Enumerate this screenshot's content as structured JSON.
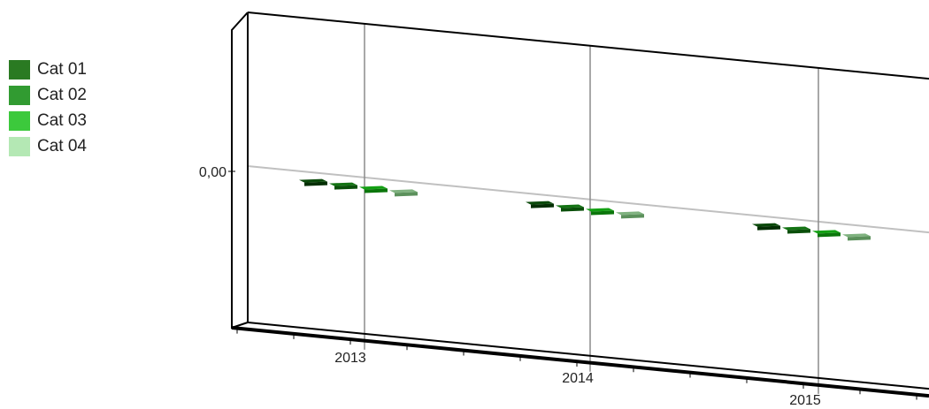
{
  "chart_data": {
    "type": "bar",
    "categories": [
      "2013",
      "2014",
      "2015"
    ],
    "series": [
      {
        "name": "Cat 01",
        "values": [
          0,
          0,
          0
        ]
      },
      {
        "name": "Cat 02",
        "values": [
          0,
          0,
          0
        ]
      },
      {
        "name": "Cat 03",
        "values": [
          0,
          0,
          0
        ]
      },
      {
        "name": "Cat 04",
        "values": [
          0,
          0,
          0
        ]
      }
    ],
    "y_tick_labels": [
      "0,00"
    ],
    "title": "",
    "xlabel": "",
    "ylabel": "",
    "legend_position": "left",
    "grid": true,
    "three_d": true
  },
  "colors": {
    "legend": [
      "#2a7a22",
      "#319b31",
      "#3cc93c",
      "#b4e8b4"
    ],
    "bar_top": [
      "#0b4a0b",
      "#137313",
      "#14a014",
      "#7fb27f"
    ],
    "bar_side": [
      "#042f04",
      "#0a4f0a",
      "#0b760b",
      "#5c915c"
    ]
  }
}
